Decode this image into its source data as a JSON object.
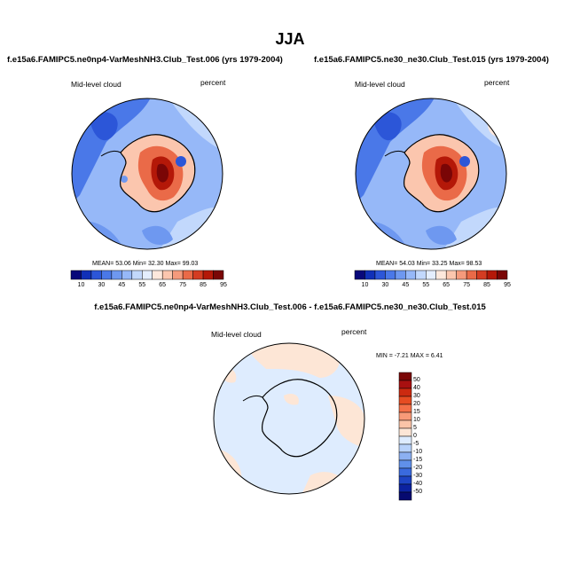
{
  "title": "JJA",
  "panel_left": {
    "heading": "f.e15a6.FAMIPC5.ne0np4-VarMeshNH3.Club_Test.006 (yrs 1979-2004)",
    "variable": "Mid-level cloud",
    "units": "percent",
    "stats": "MEAN=  53.06  Min=  32.30  Max=  99.03"
  },
  "panel_right": {
    "heading": "f.e15a6.FAMIPC5.ne30_ne30.Club_Test.015 (yrs 1979-2004)",
    "variable": "Mid-level cloud",
    "units": "percent",
    "stats": "MEAN=  54.03  Min=  33.25  Max=  98.53"
  },
  "panel_diff": {
    "heading": "f.e15a6.FAMIPC5.ne0np4-VarMeshNH3.Club_Test.006 - f.e15a6.FAMIPC5.ne30_ne30.Club_Test.015",
    "variable": "Mid-level cloud",
    "units": "percent",
    "stats": "MIN = -7.21  MAX =   6.41"
  },
  "colorbar_abs": {
    "labels": [
      "10",
      "30",
      "45",
      "55",
      "65",
      "75",
      "85",
      "95"
    ],
    "colors": [
      "#08087a",
      "#1030b8",
      "#2c56d8",
      "#4a78e8",
      "#6e98f0",
      "#96b8f8",
      "#c2d8fc",
      "#e4eefe",
      "#fde8dc",
      "#fbc6ae",
      "#f59a7c",
      "#ea6a48",
      "#d43c22",
      "#b41808",
      "#7a0606"
    ]
  },
  "colorbar_diff": {
    "labels": [
      "50",
      "40",
      "30",
      "20",
      "15",
      "10",
      "5",
      "0",
      "-5",
      "-10",
      "-15",
      "-20",
      "-30",
      "-40",
      "-50"
    ],
    "colors": [
      "#7a0606",
      "#a81010",
      "#cc2a10",
      "#e64c22",
      "#f47048",
      "#f89a78",
      "#fbc4a8",
      "#fde6d6",
      "#deecfe",
      "#b8d2fa",
      "#8cb0f2",
      "#6090ea",
      "#3a6ade",
      "#1e44c4",
      "#0c22a0",
      "#060a70"
    ]
  },
  "map_colors": {
    "ocean_low": "#4a78e8",
    "ocean_mid": "#96b8f8",
    "ocean_pale": "#c2d8fc",
    "land_high": "#d43c22",
    "land_peak": "#7a0606",
    "land_warm": "#f59a7c",
    "diff_pos": "#fde6d6",
    "diff_neg": "#deecfe"
  }
}
